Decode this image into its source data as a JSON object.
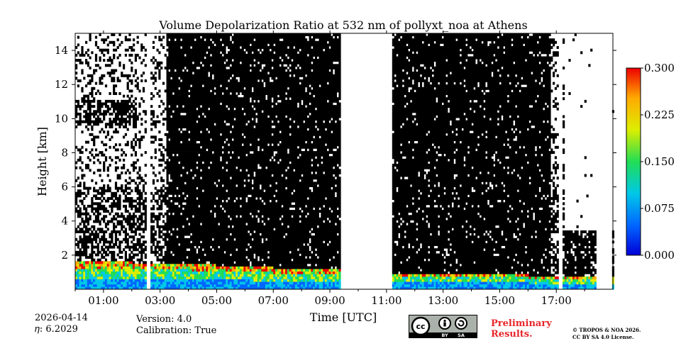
{
  "chart_data": {
    "type": "heatmap",
    "title": "Volume Depolarization Ratio at 532 nm of pollyxt_noa at Athens",
    "xlabel": "Time [UTC]",
    "ylabel": "Height [km]",
    "xlim": [
      0,
      19
    ],
    "ylim": [
      0,
      15
    ],
    "x_ticks": [
      {
        "value": 1,
        "label": "01:00"
      },
      {
        "value": 3,
        "label": "03:00"
      },
      {
        "value": 5,
        "label": "05:00"
      },
      {
        "value": 7,
        "label": "07:00"
      },
      {
        "value": 9,
        "label": "09:00"
      },
      {
        "value": 11,
        "label": "11:00"
      },
      {
        "value": 13,
        "label": "13:00"
      },
      {
        "value": 15,
        "label": "15:00"
      },
      {
        "value": 17,
        "label": "17:00"
      }
    ],
    "y_ticks": [
      {
        "value": 2,
        "label": "2"
      },
      {
        "value": 4,
        "label": "4"
      },
      {
        "value": 6,
        "label": "6"
      },
      {
        "value": 8,
        "label": "8"
      },
      {
        "value": 10,
        "label": "10"
      },
      {
        "value": 12,
        "label": "12"
      },
      {
        "value": 14,
        "label": "14"
      }
    ],
    "colorbar": {
      "min": 0.0,
      "max": 0.3,
      "ticks": [
        {
          "value": 0.0,
          "label": "0.000"
        },
        {
          "value": 0.075,
          "label": "0.075"
        },
        {
          "value": 0.15,
          "label": "0.150"
        },
        {
          "value": 0.225,
          "label": "0.225"
        },
        {
          "value": 0.3,
          "label": "0.300"
        }
      ],
      "colors": [
        "#0000d8",
        "#0066ff",
        "#00c8e8",
        "#22dd55",
        "#ddee00",
        "#ffaa00",
        "#ee0000"
      ]
    },
    "data_gaps_hours": [
      [
        2.5,
        2.65
      ],
      [
        9.35,
        11.2
      ],
      [
        17.1,
        17.25
      ],
      [
        18.4,
        19.0
      ]
    ],
    "data_start_hour": 0.0
  },
  "footer": {
    "date": "2026-04-14",
    "eta": "𝜂: 6.2029",
    "version": "Version: 4.0",
    "calibration": "Calibration: True",
    "cc_badge": {
      "left": "BY",
      "right": "SA",
      "cc": "cc"
    },
    "preliminary_line1": "Preliminary",
    "preliminary_line2": "Results.",
    "copyright_line1": "© TROPOS & NOA 2026.",
    "copyright_line2": "CC BY SA 4.0 License."
  },
  "colors": {
    "background": "#ffffff",
    "no_signal": "#000000",
    "preliminary": "#e8262a"
  }
}
